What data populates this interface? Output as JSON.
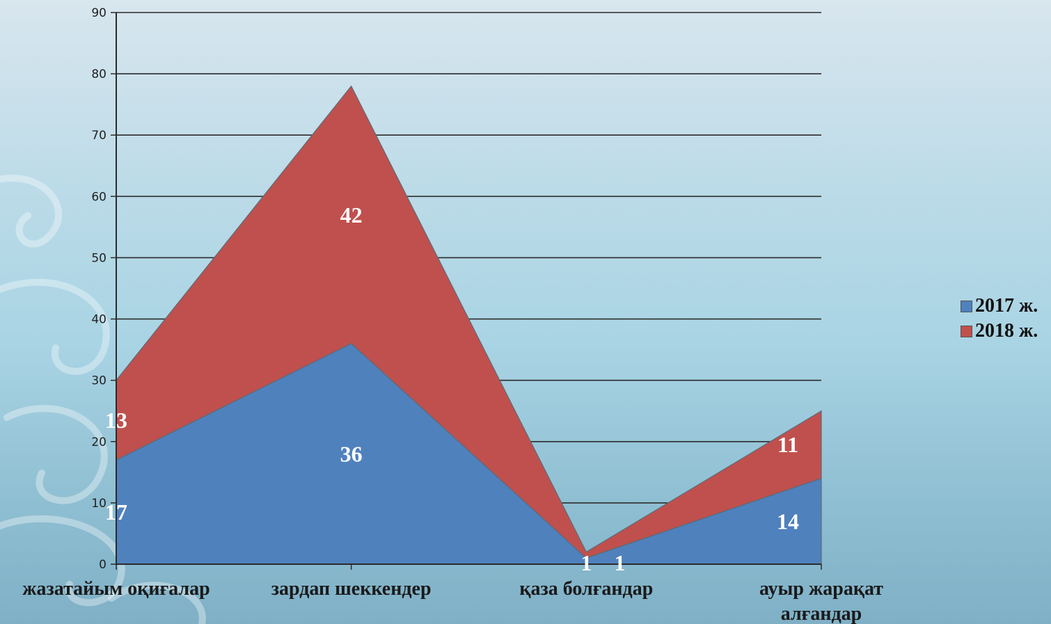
{
  "chart_data": {
    "type": "area",
    "stacked": true,
    "categories": [
      "жазатайым оқиғалар",
      "зардап шеккендер",
      "қаза болғандар",
      "ауыр жарақат алғандар"
    ],
    "series": [
      {
        "name": "2017 ж.",
        "values": [
          17,
          36,
          1,
          14
        ],
        "color": "#4f81bd"
      },
      {
        "name": "2018 ж.",
        "values": [
          13,
          42,
          1,
          11
        ],
        "color": "#c0504d"
      }
    ],
    "ylim": [
      0,
      90
    ],
    "yticks": [
      0,
      10,
      20,
      30,
      40,
      50,
      60,
      70,
      80,
      90
    ],
    "grid": true,
    "legend_position": "right"
  }
}
